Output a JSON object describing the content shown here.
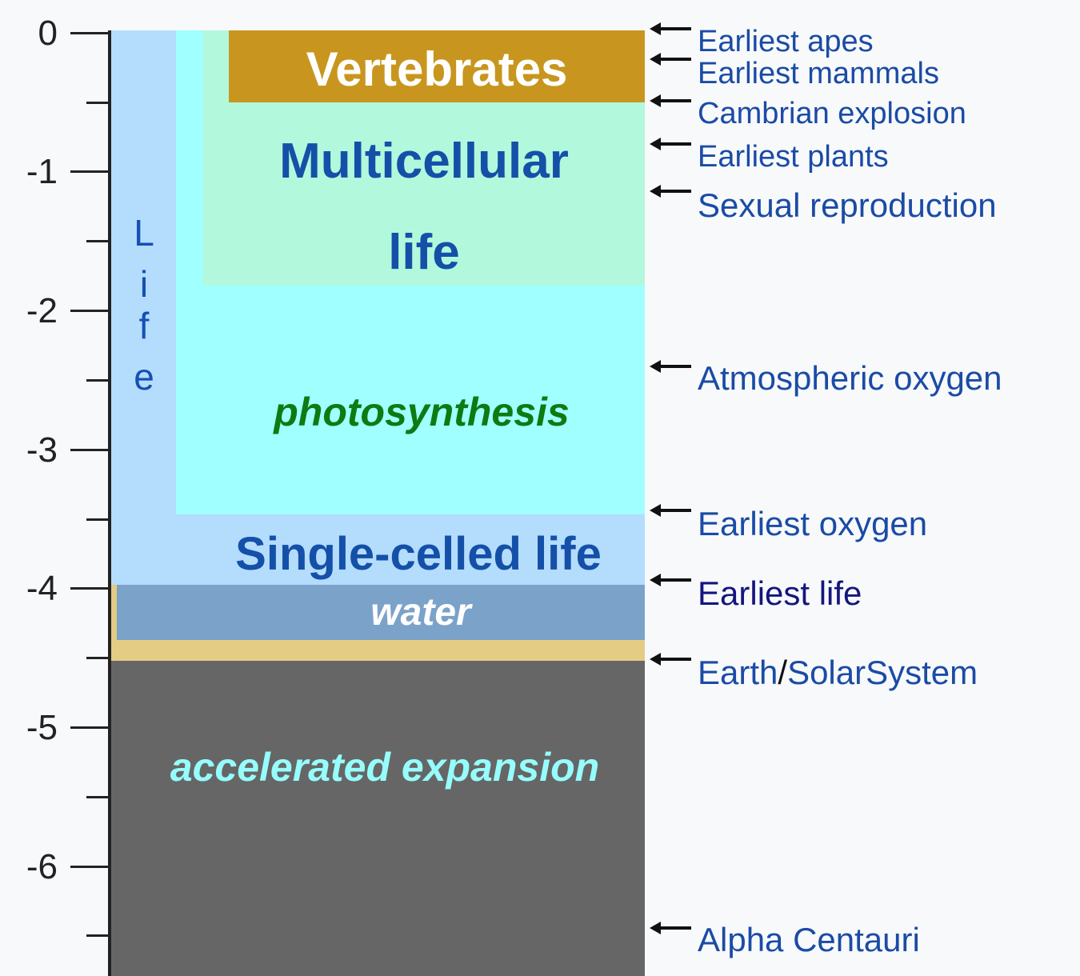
{
  "axis": {
    "ticks": [
      "0",
      "-1",
      "-2",
      "-3",
      "-4",
      "-5",
      "-6"
    ]
  },
  "bands": {
    "vertebrates": "Vertebrates",
    "multicellular_line1": "Multicellular",
    "multicellular_line2": "life",
    "photosynthesis": "photosynthesis",
    "single_celled": "Single-celled life",
    "water": "water",
    "expansion": "accelerated expansion",
    "life_letters": [
      "L",
      "i",
      "f",
      "e"
    ]
  },
  "events": [
    {
      "label": "Earliest apes"
    },
    {
      "label": "Earliest mammals"
    },
    {
      "label": "Cambrian explosion"
    },
    {
      "label": "Earliest plants"
    },
    {
      "label": "Sexual reproduction"
    },
    {
      "label": "Atmospheric oxygen"
    },
    {
      "label": "Earliest oxygen"
    },
    {
      "label": "Earliest life"
    },
    {
      "label_part1": "Earth",
      "label_sep": "/",
      "label_part2": "SolarSystem"
    },
    {
      "label": "Alpha Centauri"
    }
  ],
  "colors": {
    "vertebrates": "#c8961e",
    "multicellular": "#b2f8dc",
    "photosynthesis": "#a0ffff",
    "single_celled": "#b4dcfc",
    "water": "#7ba2c9",
    "earth": "#e4cc84",
    "expansion": "#666666",
    "text_blue": "#1a4ba6",
    "text_green": "#0e7a12",
    "text_cyan": "#96fcfc"
  }
}
